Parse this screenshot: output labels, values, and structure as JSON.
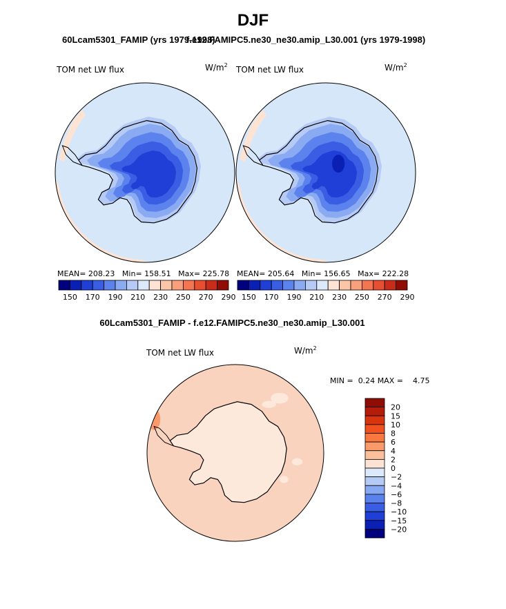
{
  "chart_data": [
    {
      "type": "heatmap",
      "projection": "south-polar-stereographic",
      "title": "60Lcam5301_FAMIP (yrs 1979-1998)",
      "variable": "TOM net LW flux",
      "units": "W/m^2",
      "stats": {
        "mean": "208.23",
        "min": "158.51",
        "max": "225.78"
      },
      "colorbar": {
        "levels": [
          150,
          160,
          170,
          180,
          190,
          200,
          210,
          220,
          230,
          240,
          250,
          260,
          270,
          280,
          290
        ],
        "tick_labels": [
          "150",
          "170",
          "190",
          "210",
          "230",
          "250",
          "270",
          "290"
        ]
      }
    },
    {
      "type": "heatmap",
      "projection": "south-polar-stereographic",
      "title": "f.e12.FAMIPC5.ne30_ne30.amip_L30.001 (yrs 1979-1998)",
      "variable": "TOM net LW flux",
      "units": "W/m^2",
      "stats": {
        "mean": "205.64",
        "min": "156.65",
        "max": "222.28"
      },
      "colorbar": {
        "levels": [
          150,
          160,
          170,
          180,
          190,
          200,
          210,
          220,
          230,
          240,
          250,
          260,
          270,
          280,
          290
        ],
        "tick_labels": [
          "150",
          "170",
          "190",
          "210",
          "230",
          "250",
          "270",
          "290"
        ]
      }
    },
    {
      "type": "heatmap",
      "projection": "south-polar-stereographic",
      "title": "60Lcam5301_FAMIP - f.e12.FAMIPC5.ne30_ne30.amip_L30.001",
      "variable": "TOM net LW flux",
      "units": "W/m^2",
      "stats": {
        "min": "0.24",
        "max": "4.75"
      },
      "colorbar": {
        "orientation": "vertical",
        "levels": [
          -20,
          -15,
          -10,
          -8,
          -6,
          -4,
          -2,
          0,
          2,
          4,
          6,
          8,
          10,
          15,
          20
        ],
        "tick_labels": [
          "20",
          "15",
          "10",
          "8",
          "6",
          "4",
          "2",
          "0",
          "−2",
          "−4",
          "−6",
          "−8",
          "−10",
          "−15",
          "−20"
        ]
      }
    }
  ],
  "page": {
    "season": "DJF",
    "labels": {
      "mean": "MEAN=",
      "min_lower": "Min=",
      "max_mixed": "Max=",
      "min_upper": "MIN =",
      "max_upper": "MAX =",
      "var": "TOM net LW flux",
      "units_base": "W/m",
      "units_exp": "2"
    }
  },
  "colors": {
    "horizontal_bar": [
      "#00007f",
      "#0a1fb3",
      "#1f3fd6",
      "#3a5ee3",
      "#5c82ee",
      "#8aaaf2",
      "#b5cbf6",
      "#dce9fa",
      "#fde3d3",
      "#fbc5a7",
      "#f8a07c",
      "#f47650",
      "#e84e30",
      "#c92d1a",
      "#8f0d04"
    ],
    "vertical_bar": [
      "#8f0d04",
      "#b41d0a",
      "#d8350f",
      "#f1511e",
      "#f8783f",
      "#fa9a6b",
      "#fbbf9c",
      "#fde3d3",
      "#dce9fa",
      "#b5cbf6",
      "#87a8f2",
      "#5a82ec",
      "#3a5ee3",
      "#1f3fd6",
      "#0a1fb3",
      "#00007f"
    ],
    "ocean_mean": "#d6e7fa",
    "ocean_diff": "#fad3bf",
    "land_diff": "#fde9dc"
  }
}
